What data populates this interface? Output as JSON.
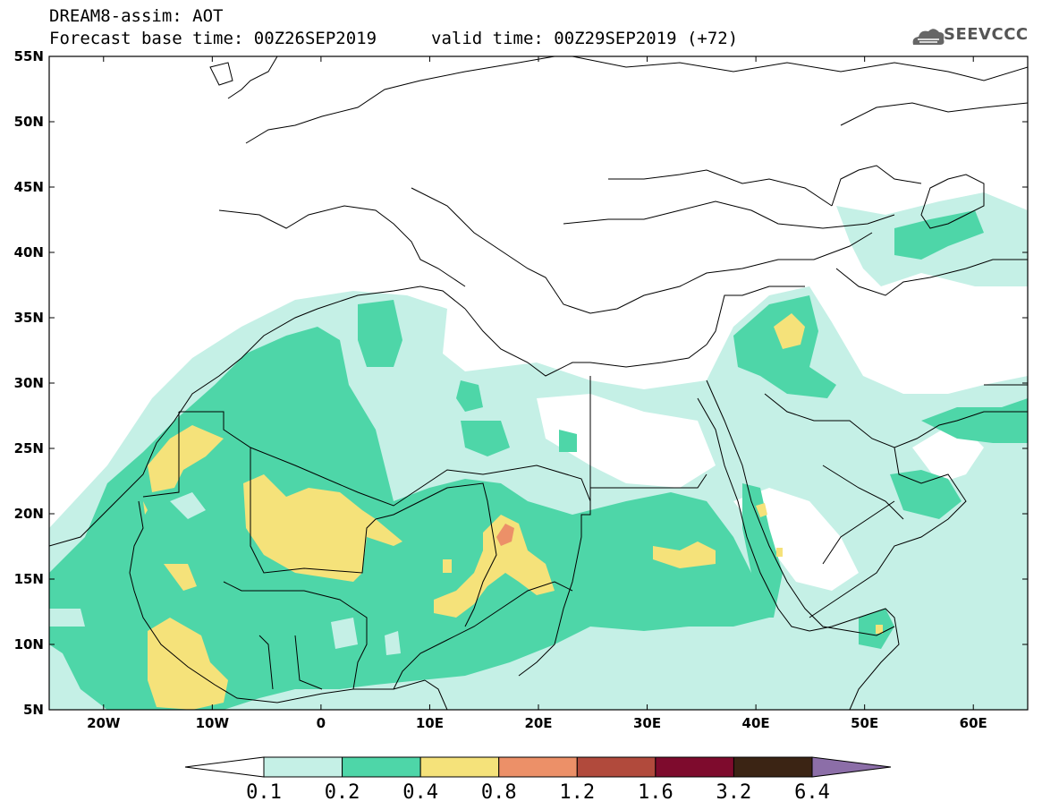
{
  "header": {
    "title": "DREAM8-assim: AOT",
    "base_time": "Forecast base time: 00Z26SEP2019",
    "valid_time": "valid time: 00Z29SEP2019 (+72)"
  },
  "logo": {
    "text": "SEEVCCC",
    "icon": "cloud-icon"
  },
  "map": {
    "projection": "lat-lon",
    "lon_range": [
      -25,
      65
    ],
    "lat_range": [
      5,
      55
    ],
    "lat_ticks": [
      "55N",
      "50N",
      "45N",
      "40N",
      "35N",
      "30N",
      "25N",
      "20N",
      "15N",
      "10N",
      "5N"
    ],
    "lon_ticks": [
      "20W",
      "10W",
      "0",
      "10E",
      "20E",
      "30E",
      "40E",
      "50E",
      "60E"
    ]
  },
  "legend": {
    "levels": [
      "0.1",
      "0.2",
      "0.4",
      "0.8",
      "1.2",
      "1.6",
      "3.2",
      "6.4"
    ],
    "colors": [
      "#ffffff",
      "#c5f0e6",
      "#4ed6a8",
      "#f5e27a",
      "#ec9068",
      "#b14a3c",
      "#7e0b2d",
      "#3b2414",
      "#8c6ea8"
    ]
  }
}
